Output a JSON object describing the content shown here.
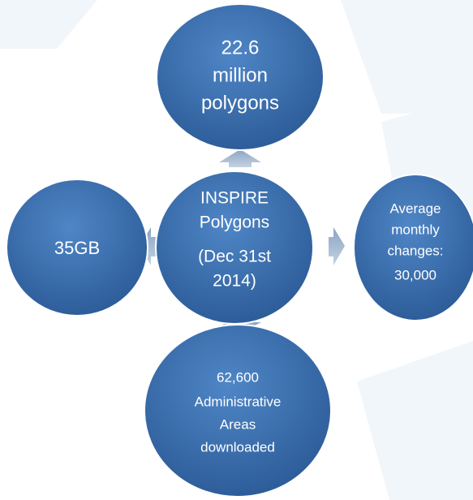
{
  "nodes": [
    {
      "lines": [
        "INSPIRE",
        "Polygons",
        "(Dec 31st",
        "2014)"
      ]
    },
    {
      "lines": [
        "22.6",
        "million",
        "polygons"
      ]
    },
    {
      "lines": [
        "35GB"
      ]
    },
    {
      "lines": [
        "Average",
        "monthly",
        "changes:",
        "30,000"
      ]
    },
    {
      "lines": [
        "62,600",
        "Administrative",
        "Areas",
        "downloaded"
      ]
    }
  ]
}
